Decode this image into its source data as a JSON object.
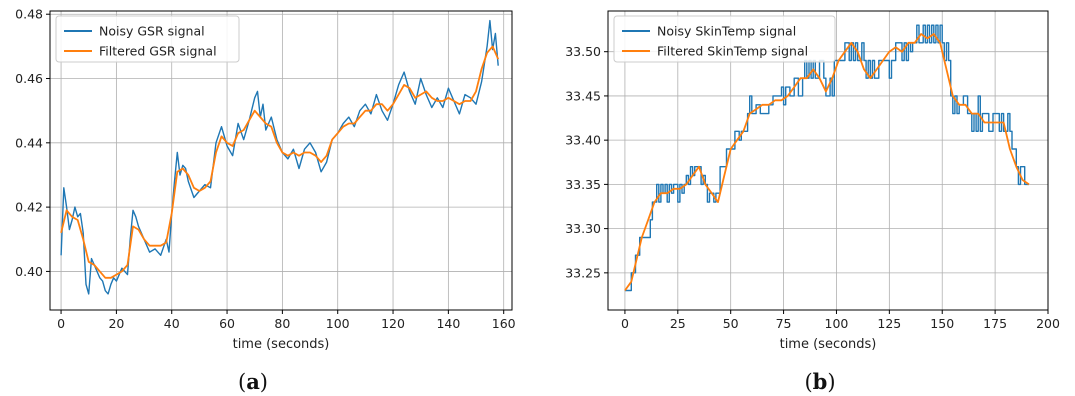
{
  "chart_data": [
    {
      "type": "line",
      "caption": "a",
      "xlabel": "time (seconds)",
      "ylabel": "",
      "xlim": [
        -4,
        163
      ],
      "ylim": [
        0.388,
        0.481
      ],
      "xticks": [
        0,
        20,
        40,
        60,
        80,
        100,
        120,
        140,
        160
      ],
      "yticks": [
        0.4,
        0.42,
        0.44,
        0.46,
        0.48
      ],
      "ytick_labels": [
        "0.40",
        "0.42",
        "0.44",
        "0.46",
        "0.48"
      ],
      "grid": true,
      "legend": "top-left",
      "series": [
        {
          "name": "Noisy GSR signal",
          "color": "#1f77b4",
          "style": "noisy",
          "x": [
            0,
            1,
            2,
            3,
            4,
            5,
            6,
            7,
            8,
            9,
            10,
            11,
            12,
            13,
            14,
            15,
            16,
            17,
            18,
            19,
            20,
            22,
            24,
            25,
            26,
            27,
            28,
            30,
            32,
            34,
            36,
            38,
            39,
            40,
            41,
            42,
            43,
            44,
            45,
            46,
            48,
            50,
            52,
            54,
            56,
            58,
            60,
            62,
            64,
            66,
            68,
            70,
            71,
            72,
            73,
            74,
            76,
            78,
            80,
            82,
            84,
            86,
            88,
            90,
            92,
            94,
            96,
            98,
            100,
            102,
            104,
            106,
            108,
            110,
            112,
            114,
            116,
            118,
            120,
            122,
            124,
            126,
            128,
            130,
            132,
            134,
            136,
            138,
            140,
            142,
            144,
            146,
            148,
            150,
            152,
            154,
            155,
            156,
            157,
            158
          ],
          "y": [
            0.405,
            0.426,
            0.42,
            0.413,
            0.416,
            0.42,
            0.417,
            0.418,
            0.412,
            0.396,
            0.393,
            0.404,
            0.402,
            0.4,
            0.398,
            0.397,
            0.394,
            0.393,
            0.396,
            0.398,
            0.397,
            0.401,
            0.399,
            0.41,
            0.419,
            0.417,
            0.414,
            0.41,
            0.406,
            0.407,
            0.405,
            0.41,
            0.406,
            0.418,
            0.428,
            0.437,
            0.43,
            0.433,
            0.432,
            0.428,
            0.423,
            0.425,
            0.427,
            0.426,
            0.44,
            0.445,
            0.439,
            0.436,
            0.446,
            0.441,
            0.447,
            0.454,
            0.456,
            0.448,
            0.452,
            0.444,
            0.448,
            0.441,
            0.437,
            0.435,
            0.438,
            0.432,
            0.438,
            0.44,
            0.437,
            0.431,
            0.434,
            0.441,
            0.443,
            0.446,
            0.448,
            0.445,
            0.45,
            0.452,
            0.449,
            0.455,
            0.45,
            0.447,
            0.452,
            0.458,
            0.462,
            0.456,
            0.452,
            0.46,
            0.455,
            0.451,
            0.454,
            0.451,
            0.457,
            0.453,
            0.449,
            0.455,
            0.454,
            0.452,
            0.459,
            0.47,
            0.478,
            0.469,
            0.474,
            0.464
          ]
        },
        {
          "name": "Filtered GSR signal",
          "color": "#ff7f0e",
          "style": "smooth",
          "x": [
            0,
            2,
            4,
            6,
            8,
            10,
            12,
            14,
            16,
            18,
            20,
            22,
            24,
            26,
            28,
            30,
            32,
            34,
            36,
            38,
            40,
            42,
            44,
            46,
            48,
            50,
            52,
            54,
            56,
            58,
            60,
            62,
            64,
            66,
            68,
            70,
            72,
            74,
            76,
            78,
            80,
            82,
            84,
            86,
            88,
            90,
            92,
            94,
            96,
            98,
            100,
            102,
            104,
            106,
            108,
            110,
            112,
            114,
            116,
            118,
            120,
            122,
            124,
            126,
            128,
            130,
            132,
            134,
            136,
            138,
            140,
            142,
            144,
            146,
            148,
            150,
            152,
            154,
            156,
            158
          ],
          "y": [
            0.412,
            0.419,
            0.417,
            0.416,
            0.41,
            0.403,
            0.402,
            0.4,
            0.398,
            0.398,
            0.399,
            0.4,
            0.402,
            0.414,
            0.413,
            0.41,
            0.408,
            0.408,
            0.408,
            0.409,
            0.418,
            0.431,
            0.432,
            0.43,
            0.426,
            0.425,
            0.426,
            0.428,
            0.437,
            0.442,
            0.44,
            0.439,
            0.443,
            0.444,
            0.447,
            0.45,
            0.448,
            0.446,
            0.445,
            0.44,
            0.437,
            0.436,
            0.437,
            0.436,
            0.437,
            0.437,
            0.436,
            0.434,
            0.436,
            0.441,
            0.443,
            0.445,
            0.446,
            0.446,
            0.448,
            0.45,
            0.45,
            0.452,
            0.452,
            0.45,
            0.452,
            0.455,
            0.458,
            0.457,
            0.454,
            0.455,
            0.456,
            0.454,
            0.453,
            0.453,
            0.454,
            0.453,
            0.452,
            0.453,
            0.453,
            0.456,
            0.463,
            0.468,
            0.47,
            0.466
          ]
        }
      ]
    },
    {
      "type": "line",
      "caption": "b",
      "xlabel": "time (seconds)",
      "ylabel": "",
      "xlim": [
        -8,
        200
      ],
      "ylim": [
        33.208,
        33.546
      ],
      "xticks": [
        0,
        25,
        50,
        75,
        100,
        125,
        150,
        175,
        200
      ],
      "yticks": [
        33.25,
        33.3,
        33.35,
        33.4,
        33.45,
        33.5
      ],
      "ytick_labels": [
        "33.25",
        "33.30",
        "33.35",
        "33.40",
        "33.45",
        "33.50"
      ],
      "grid": true,
      "legend": "top-left",
      "series": [
        {
          "name": "Noisy SkinTemp signal",
          "color": "#1f77b4",
          "style": "step",
          "x": [
            0,
            3,
            5,
            7,
            9,
            12,
            13,
            14,
            15,
            16,
            17,
            18,
            19,
            20,
            21,
            22,
            23,
            24,
            25,
            26,
            27,
            28,
            29,
            30,
            31,
            32,
            33,
            34,
            35,
            36,
            37,
            38,
            39,
            40,
            41,
            42,
            43,
            44,
            45,
            46,
            48,
            50,
            52,
            53,
            54,
            55,
            57,
            58,
            59,
            60,
            62,
            64,
            66,
            68,
            70,
            72,
            74,
            75,
            76,
            78,
            80,
            82,
            84,
            85,
            86,
            87,
            88,
            89,
            90,
            91,
            92,
            93,
            94,
            95,
            96,
            97,
            98,
            99,
            100,
            102,
            104,
            105,
            106,
            107,
            108,
            109,
            110,
            111,
            112,
            113,
            114,
            115,
            116,
            117,
            118,
            120,
            122,
            124,
            125,
            126,
            128,
            130,
            131,
            132,
            133,
            134,
            135,
            136,
            138,
            139,
            140,
            141,
            142,
            143,
            144,
            145,
            146,
            147,
            148,
            149,
            150,
            151,
            152,
            153,
            154,
            155,
            156,
            157,
            158,
            160,
            162,
            163,
            164,
            165,
            166,
            167,
            168,
            169,
            170,
            172,
            174,
            176,
            177,
            178,
            179,
            180,
            181,
            182,
            183,
            184,
            185,
            186,
            187,
            188,
            189,
            190,
            191
          ],
          "y": [
            33.23,
            33.25,
            33.27,
            33.29,
            33.29,
            33.31,
            33.33,
            33.33,
            33.35,
            33.33,
            33.35,
            33.34,
            33.35,
            33.33,
            33.35,
            33.34,
            33.35,
            33.35,
            33.33,
            33.35,
            33.34,
            33.35,
            33.36,
            33.35,
            33.37,
            33.36,
            33.37,
            33.37,
            33.37,
            33.35,
            33.36,
            33.35,
            33.33,
            33.34,
            33.34,
            33.33,
            33.34,
            33.34,
            33.37,
            33.37,
            33.39,
            33.39,
            33.41,
            33.41,
            33.4,
            33.41,
            33.41,
            33.43,
            33.45,
            33.43,
            33.44,
            33.43,
            33.43,
            33.44,
            33.45,
            33.45,
            33.46,
            33.44,
            33.46,
            33.45,
            33.47,
            33.45,
            33.47,
            33.49,
            33.47,
            33.49,
            33.47,
            33.49,
            33.47,
            33.47,
            33.49,
            33.49,
            33.47,
            33.45,
            33.45,
            33.47,
            33.45,
            33.49,
            33.49,
            33.49,
            33.51,
            33.51,
            33.49,
            33.51,
            33.49,
            33.51,
            33.49,
            33.49,
            33.51,
            33.49,
            33.47,
            33.49,
            33.47,
            33.49,
            33.47,
            33.49,
            33.49,
            33.49,
            33.47,
            33.49,
            33.51,
            33.51,
            33.49,
            33.51,
            33.49,
            33.51,
            33.5,
            33.51,
            33.53,
            33.51,
            33.51,
            33.53,
            33.51,
            33.53,
            33.51,
            33.53,
            33.51,
            33.53,
            33.51,
            33.53,
            33.51,
            33.49,
            33.51,
            33.49,
            33.45,
            33.43,
            33.45,
            33.43,
            33.44,
            33.45,
            33.43,
            33.43,
            33.41,
            33.43,
            33.41,
            33.45,
            33.41,
            33.43,
            33.43,
            33.41,
            33.43,
            33.43,
            33.41,
            33.43,
            33.41,
            33.41,
            33.43,
            33.41,
            33.39,
            33.39,
            33.37,
            33.35,
            33.37,
            33.37,
            33.35,
            33.35,
            33.35
          ]
        },
        {
          "name": "Filtered SkinTemp signal",
          "color": "#ff7f0e",
          "style": "smooth",
          "x": [
            0,
            3,
            5,
            8,
            11,
            14,
            17,
            20,
            23,
            26,
            29,
            32,
            35,
            38,
            41,
            44,
            47,
            50,
            53,
            56,
            59,
            62,
            65,
            68,
            71,
            74,
            77,
            80,
            83,
            86,
            89,
            92,
            95,
            98,
            101,
            104,
            107,
            110,
            113,
            116,
            119,
            122,
            125,
            128,
            131,
            134,
            137,
            140,
            143,
            146,
            149,
            152,
            155,
            158,
            161,
            164,
            167,
            170,
            173,
            176,
            179,
            182,
            185,
            188,
            191
          ],
          "y": [
            33.23,
            33.24,
            33.26,
            33.29,
            33.31,
            33.33,
            33.34,
            33.34,
            33.345,
            33.345,
            33.35,
            33.36,
            33.37,
            33.35,
            33.34,
            33.33,
            33.36,
            33.39,
            33.4,
            33.41,
            33.43,
            33.435,
            33.44,
            33.44,
            33.445,
            33.445,
            33.45,
            33.46,
            33.47,
            33.47,
            33.48,
            33.47,
            33.455,
            33.47,
            33.49,
            33.5,
            33.51,
            33.5,
            33.48,
            33.47,
            33.48,
            33.49,
            33.5,
            33.505,
            33.5,
            33.51,
            33.51,
            33.52,
            33.515,
            33.52,
            33.51,
            33.48,
            33.45,
            33.44,
            33.44,
            33.43,
            33.43,
            33.42,
            33.42,
            33.42,
            33.42,
            33.39,
            33.37,
            33.355,
            33.35
          ]
        }
      ]
    }
  ]
}
